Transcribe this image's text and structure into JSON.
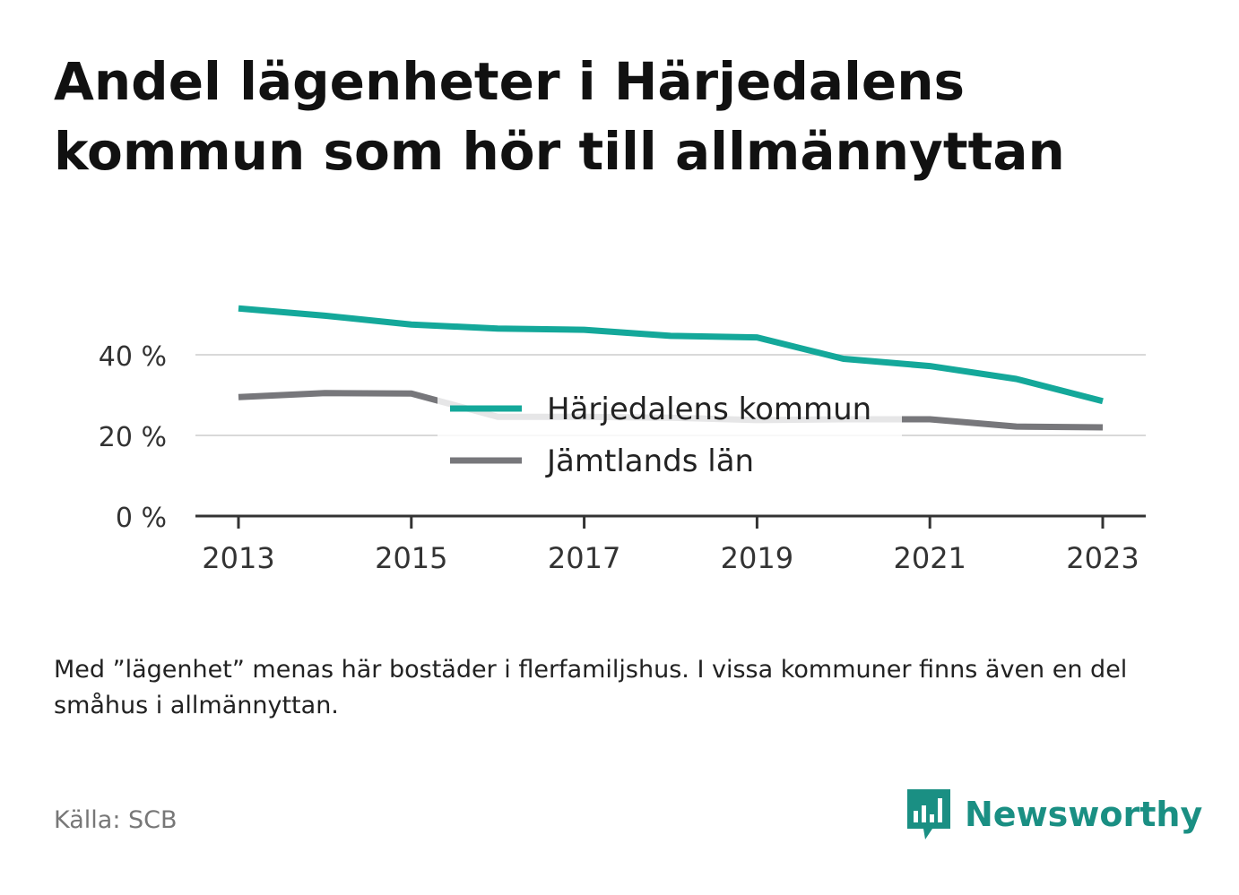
{
  "title": "Andel lägenheter i Härjedalens kommun som hör till allmännyttan",
  "note": "Med ”lägenhet” menas här bostäder i flerfamiljshus. I vissa kommuner finns även en del småhus i allmännyttan.",
  "source": "Källa: SCB",
  "brand": {
    "name": "Newsworthy",
    "icon": "newsworthy-logo-icon"
  },
  "colors": {
    "primary": "#14a89a",
    "secondary": "#77777b",
    "grid": "#d9d9d9",
    "axis": "#333333"
  },
  "chart_data": {
    "type": "line",
    "x": [
      2013,
      2014,
      2015,
      2016,
      2017,
      2018,
      2019,
      2020,
      2021,
      2022,
      2023
    ],
    "x_ticks": [
      "2013",
      "2015",
      "2017",
      "2019",
      "2021",
      "2023"
    ],
    "y_ticks": [
      "0 %",
      "20 %",
      "40 %"
    ],
    "y_tick_values": [
      0,
      20,
      40
    ],
    "ylim": [
      0,
      52
    ],
    "grid": true,
    "legend_position": "center",
    "series": [
      {
        "name": "Härjedalens kommun",
        "values": [
          51.5,
          49.7,
          47.5,
          46.5,
          46.2,
          44.7,
          44.3,
          39.0,
          37.2,
          34.0,
          28.5
        ]
      },
      {
        "name": "Jämtlands län",
        "values": [
          29.5,
          30.5,
          30.4,
          24.6,
          24.6,
          24.4,
          23.8,
          24.0,
          24.0,
          22.2,
          22.0
        ]
      }
    ]
  }
}
